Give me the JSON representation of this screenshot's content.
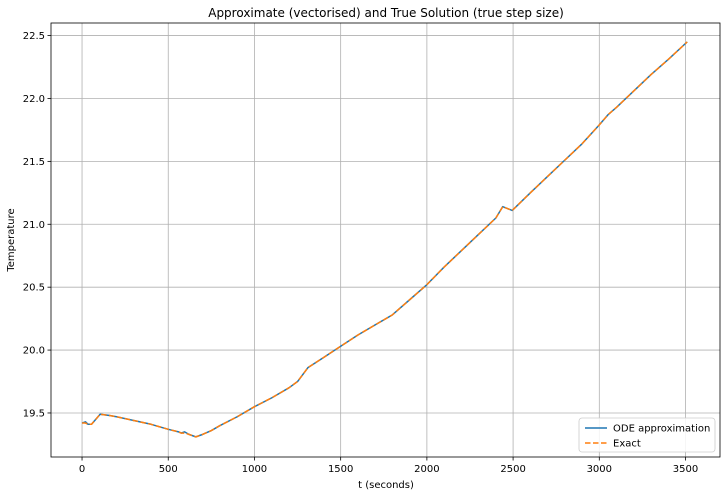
{
  "chart_data": {
    "type": "line",
    "title": "Approximate (vectorised) and True Solution (true step size)",
    "xlabel": "t (seconds)",
    "ylabel": "Temperature",
    "xlim": [
      -180,
      3700
    ],
    "ylim": [
      19.15,
      22.6
    ],
    "xticks": [
      0,
      500,
      1000,
      1500,
      2000,
      2500,
      3000,
      3500
    ],
    "xtick_labels": [
      "0",
      "500",
      "1000",
      "1500",
      "2000",
      "2500",
      "3000",
      "3500"
    ],
    "yticks": [
      19.5,
      20.0,
      20.5,
      21.0,
      21.5,
      22.0,
      22.5
    ],
    "ytick_labels": [
      "19.5",
      "20.0",
      "20.5",
      "21.0",
      "21.5",
      "22.0",
      "22.5"
    ],
    "grid": true,
    "legend_position": "lower-right",
    "series": [
      {
        "name": "ODE approximation",
        "color": "#1f77b4",
        "style": "solid",
        "x": [
          0,
          20,
          35,
          55,
          105,
          160,
          200,
          300,
          400,
          500,
          560,
          575,
          595,
          620,
          660,
          700,
          750,
          800,
          900,
          1000,
          1100,
          1200,
          1250,
          1310,
          1400,
          1500,
          1600,
          1700,
          1800,
          1900,
          2000,
          2100,
          2200,
          2300,
          2400,
          2440,
          2495,
          2600,
          2700,
          2800,
          2900,
          3000,
          3050,
          3100,
          3200,
          3300,
          3400,
          3510
        ],
        "y": [
          19.42,
          19.43,
          19.41,
          19.41,
          19.49,
          19.48,
          19.47,
          19.44,
          19.41,
          19.37,
          19.35,
          19.34,
          19.35,
          19.33,
          19.31,
          19.33,
          19.36,
          19.4,
          19.47,
          19.55,
          19.62,
          19.7,
          19.75,
          19.86,
          19.94,
          20.03,
          20.12,
          20.2,
          20.28,
          20.4,
          20.52,
          20.66,
          20.79,
          20.92,
          21.05,
          21.14,
          21.11,
          21.25,
          21.38,
          21.51,
          21.64,
          21.79,
          21.87,
          21.93,
          22.06,
          22.19,
          22.31,
          22.45
        ]
      },
      {
        "name": "Exact",
        "color": "#ff7f0e",
        "style": "dashed",
        "x": [
          0,
          20,
          35,
          55,
          105,
          160,
          200,
          300,
          400,
          500,
          560,
          575,
          595,
          620,
          660,
          700,
          750,
          800,
          900,
          1000,
          1100,
          1200,
          1250,
          1310,
          1400,
          1500,
          1600,
          1700,
          1800,
          1900,
          2000,
          2100,
          2200,
          2300,
          2400,
          2440,
          2495,
          2600,
          2700,
          2800,
          2900,
          3000,
          3050,
          3100,
          3200,
          3300,
          3400,
          3510
        ],
        "y": [
          19.42,
          19.42,
          19.41,
          19.41,
          19.49,
          19.48,
          19.47,
          19.44,
          19.41,
          19.37,
          19.35,
          19.34,
          19.34,
          19.33,
          19.31,
          19.33,
          19.36,
          19.4,
          19.47,
          19.55,
          19.62,
          19.7,
          19.75,
          19.86,
          19.94,
          20.03,
          20.12,
          20.2,
          20.28,
          20.4,
          20.52,
          20.66,
          20.79,
          20.92,
          21.05,
          21.14,
          21.11,
          21.25,
          21.38,
          21.51,
          21.64,
          21.79,
          21.87,
          21.93,
          22.06,
          22.19,
          22.31,
          22.45
        ]
      }
    ]
  }
}
